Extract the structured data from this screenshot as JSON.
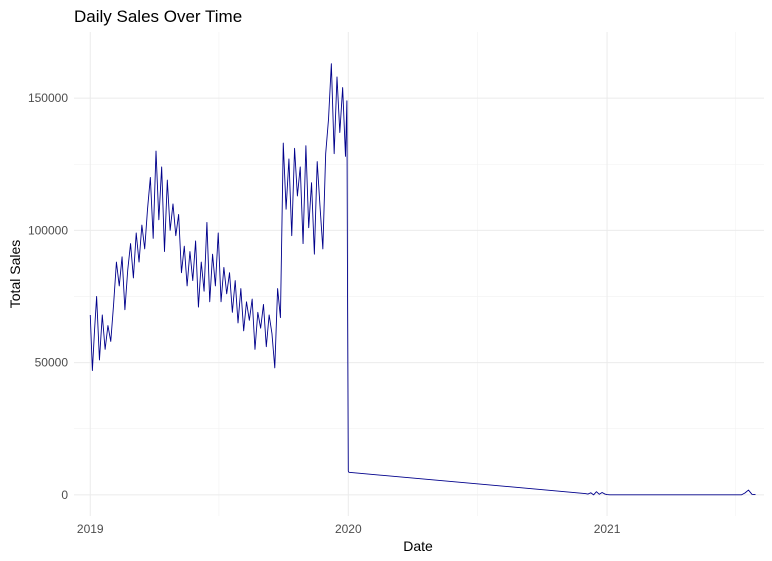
{
  "chart_data": {
    "type": "line",
    "title": "Daily Sales Over Time",
    "xlabel": "Date",
    "ylabel": "Total Sales",
    "x_range": [
      "2018-12-09",
      "2021-08-11"
    ],
    "ylim": [
      -8000,
      175000
    ],
    "x_ticks": [
      {
        "date": "2019-01-01",
        "label": "2019"
      },
      {
        "date": "2020-01-01",
        "label": "2020"
      },
      {
        "date": "2021-01-01",
        "label": "2021"
      }
    ],
    "y_ticks": [
      {
        "value": 0,
        "label": "0"
      },
      {
        "value": 50000,
        "label": "50000"
      },
      {
        "value": 100000,
        "label": "100000"
      },
      {
        "value": 150000,
        "label": "150000"
      }
    ],
    "grid": true,
    "legend": "none",
    "line_color": "#00008B",
    "series": [
      {
        "x": [
          "2019-01-01",
          "2019-01-04",
          "2019-01-07",
          "2019-01-10",
          "2019-01-14",
          "2019-01-18",
          "2019-01-22",
          "2019-01-26",
          "2019-01-30",
          "2019-02-03",
          "2019-02-07",
          "2019-02-11",
          "2019-02-15",
          "2019-02-19",
          "2019-02-23",
          "2019-02-27",
          "2019-03-03",
          "2019-03-07",
          "2019-03-11",
          "2019-03-15",
          "2019-03-19",
          "2019-03-23",
          "2019-03-27",
          "2019-03-31",
          "2019-04-04",
          "2019-04-08",
          "2019-04-12",
          "2019-04-16",
          "2019-04-20",
          "2019-04-24",
          "2019-04-28",
          "2019-05-02",
          "2019-05-06",
          "2019-05-10",
          "2019-05-14",
          "2019-05-18",
          "2019-05-22",
          "2019-05-26",
          "2019-05-30",
          "2019-06-03",
          "2019-06-07",
          "2019-06-11",
          "2019-06-15",
          "2019-06-19",
          "2019-06-23",
          "2019-06-27",
          "2019-07-01",
          "2019-07-05",
          "2019-07-09",
          "2019-07-13",
          "2019-07-17",
          "2019-07-21",
          "2019-07-25",
          "2019-07-29",
          "2019-08-02",
          "2019-08-06",
          "2019-08-10",
          "2019-08-14",
          "2019-08-18",
          "2019-08-22",
          "2019-08-26",
          "2019-08-30",
          "2019-09-03",
          "2019-09-07",
          "2019-09-11",
          "2019-09-15",
          "2019-09-19",
          "2019-09-23",
          "2019-09-27",
          "2019-10-01",
          "2019-10-05",
          "2019-10-09",
          "2019-10-13",
          "2019-10-17",
          "2019-10-21",
          "2019-10-25",
          "2019-10-29",
          "2019-11-02",
          "2019-11-06",
          "2019-11-10",
          "2019-11-14",
          "2019-11-18",
          "2019-11-22",
          "2019-11-26",
          "2019-11-30",
          "2019-12-04",
          "2019-12-08",
          "2019-12-12",
          "2019-12-16",
          "2019-12-20",
          "2019-12-24",
          "2019-12-28",
          "2019-12-30",
          "2019-12-31",
          "2020-01-01",
          "2020-01-02",
          "2020-12-01",
          "2020-12-05",
          "2020-12-09",
          "2020-12-13",
          "2020-12-17",
          "2020-12-21",
          "2020-12-25",
          "2020-12-29",
          "2021-01-01",
          "2021-01-05",
          "2021-01-15",
          "2021-03-01",
          "2021-05-01",
          "2021-07-01",
          "2021-07-10",
          "2021-07-15",
          "2021-07-20",
          "2021-07-25",
          "2021-07-30"
        ],
        "values": [
          68000,
          47000,
          62000,
          75000,
          51000,
          68000,
          55000,
          64000,
          58000,
          72000,
          88000,
          79000,
          90000,
          70000,
          85000,
          95000,
          82000,
          99000,
          88000,
          102000,
          93000,
          108000,
          120000,
          97000,
          130000,
          104000,
          124000,
          92000,
          119000,
          100000,
          110000,
          98000,
          106000,
          84000,
          94000,
          79000,
          92000,
          81000,
          96000,
          71000,
          88000,
          77000,
          103000,
          73000,
          91000,
          79000,
          99000,
          73000,
          86000,
          76000,
          84000,
          69000,
          81000,
          65000,
          78000,
          62000,
          73000,
          66000,
          74000,
          55000,
          69000,
          63000,
          72000,
          56000,
          68000,
          61000,
          48000,
          78000,
          67000,
          133000,
          108000,
          127000,
          98000,
          131000,
          113000,
          124000,
          95000,
          132000,
          101000,
          118000,
          91000,
          126000,
          109000,
          93000,
          129000,
          142000,
          163000,
          129000,
          158000,
          137000,
          154000,
          128000,
          149000,
          70000,
          9000,
          8500,
          500,
          300,
          800,
          0,
          1200,
          200,
          900,
          300,
          100,
          0,
          0,
          0,
          0,
          0,
          0,
          700,
          1800,
          200,
          100
        ]
      }
    ]
  }
}
